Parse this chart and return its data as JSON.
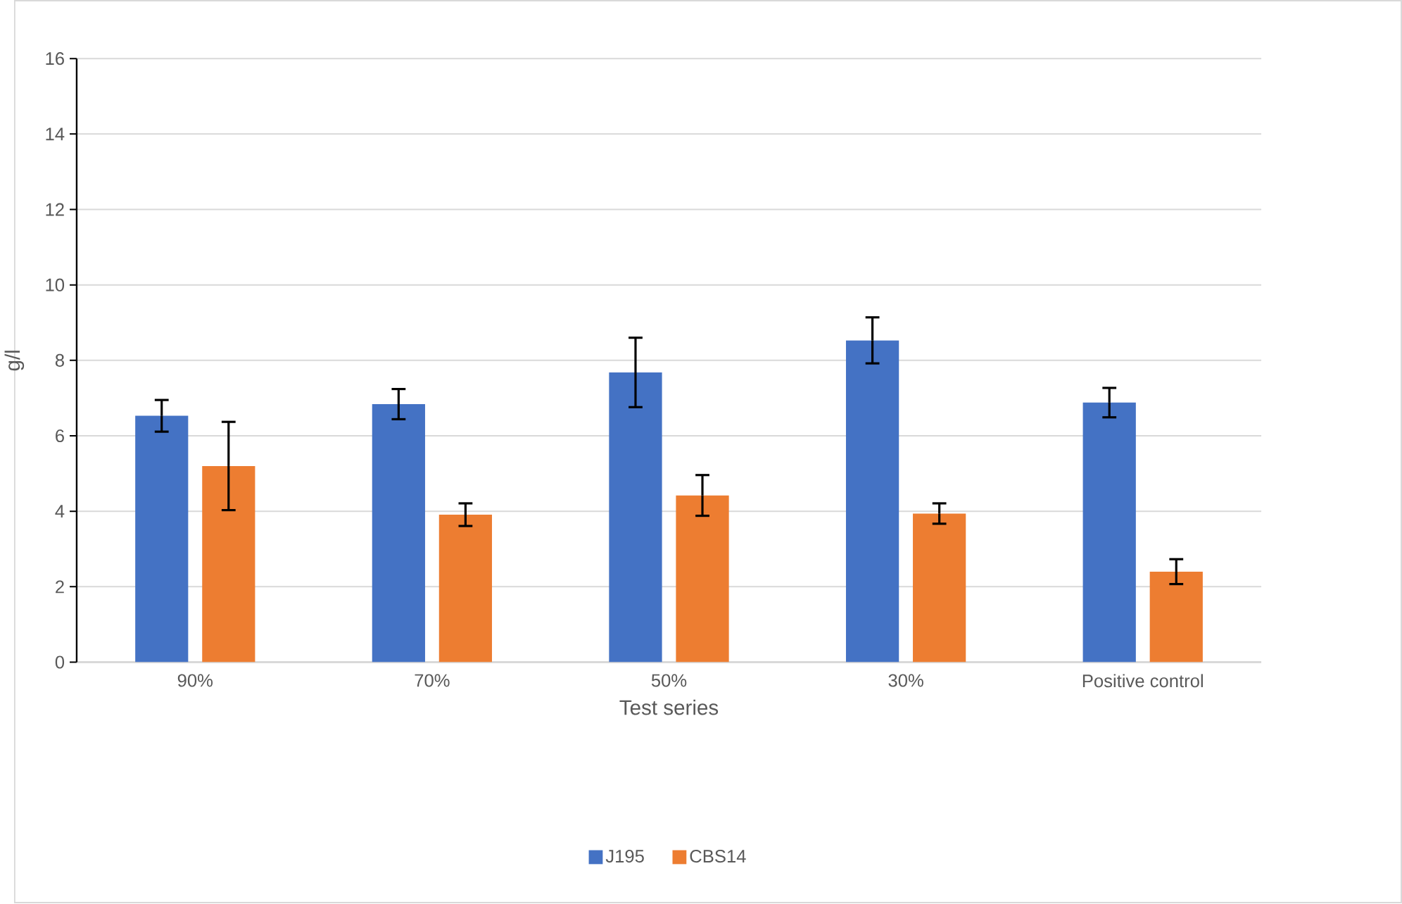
{
  "chart_data": {
    "type": "bar",
    "xlabel": "Test series",
    "ylabel": "g/l",
    "categories": [
      "90%",
      "70%",
      "50%",
      "30%",
      "Positive control"
    ],
    "series": [
      {
        "name": "J195",
        "color": "#4472c4",
        "values": [
          6.53,
          6.84,
          7.68,
          8.53,
          6.88
        ],
        "errors": [
          0.42,
          0.4,
          0.92,
          0.61,
          0.39
        ]
      },
      {
        "name": "CBS14",
        "color": "#ed7d31",
        "values": [
          5.2,
          3.91,
          4.42,
          3.94,
          2.4
        ],
        "errors": [
          1.17,
          0.3,
          0.54,
          0.27,
          0.33
        ]
      }
    ],
    "ylim": [
      0,
      16
    ],
    "yticks": [
      0,
      2,
      4,
      6,
      8,
      10,
      12,
      14,
      16
    ],
    "grid": "y",
    "legend": "bottom"
  }
}
